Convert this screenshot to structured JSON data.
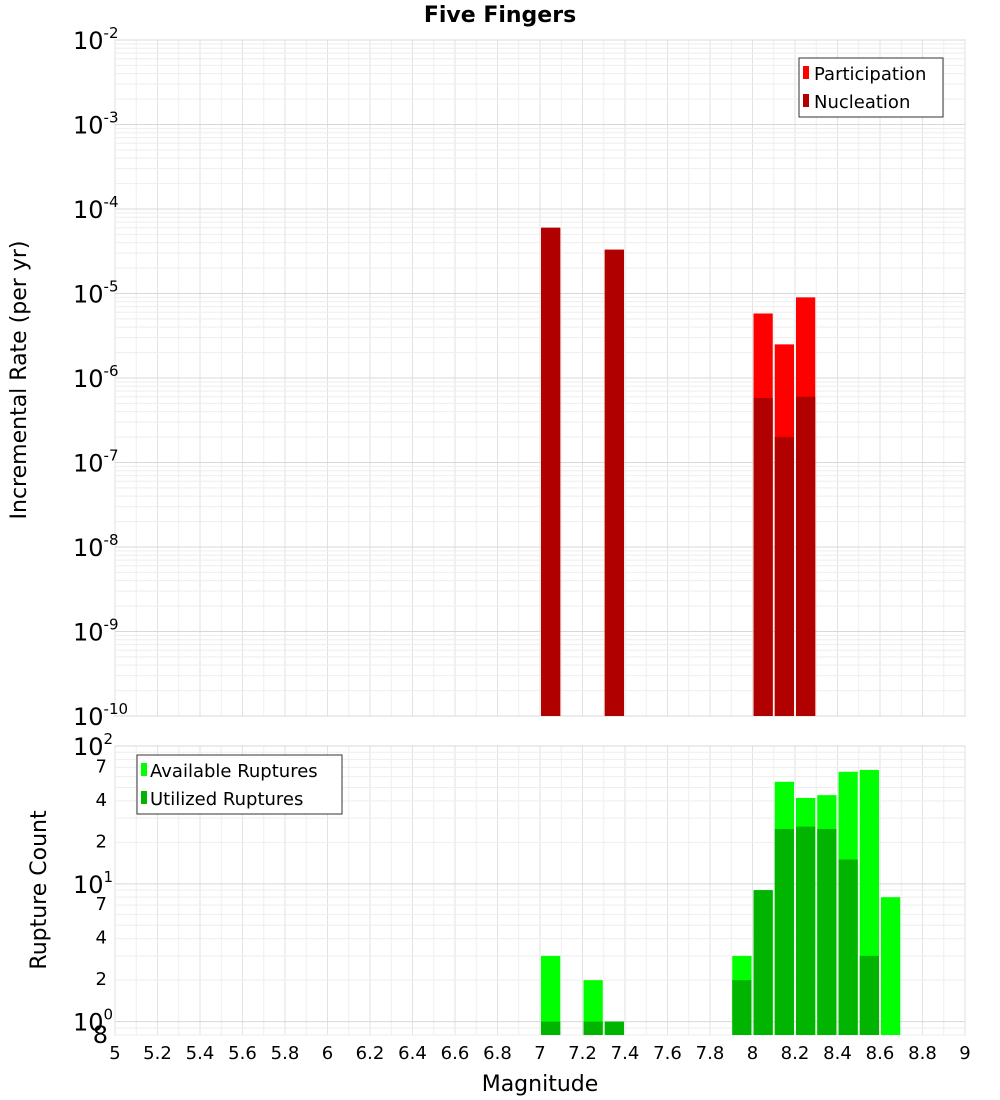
{
  "chart_data": [
    {
      "type": "bar",
      "title": "Five Fingers",
      "ylabel": "Incremental Rate (per yr)",
      "xlabel": "Magnitude",
      "xlim": [
        5,
        9
      ],
      "ylim": [
        1e-10,
        0.01
      ],
      "y_scale": "log",
      "bar_width": 0.1,
      "grid": true,
      "legend_position": "top-right",
      "y_tick_labels": [
        {
          "base": "10",
          "exp": "-10"
        },
        {
          "base": "10",
          "exp": "-9"
        },
        {
          "base": "10",
          "exp": "-8"
        },
        {
          "base": "10",
          "exp": "-7"
        },
        {
          "base": "10",
          "exp": "-6"
        },
        {
          "base": "10",
          "exp": "-5"
        },
        {
          "base": "10",
          "exp": "-4"
        },
        {
          "base": "10",
          "exp": "-3"
        },
        {
          "base": "10",
          "exp": "-2"
        }
      ],
      "series": [
        {
          "name": "Participation",
          "color": "#ff0000",
          "x": [
            7.05,
            7.35,
            8.05,
            8.15,
            8.25
          ],
          "values": [
            6e-05,
            3.3e-05,
            5.8e-06,
            2.5e-06,
            9e-06
          ]
        },
        {
          "name": "Nucleation",
          "color": "#b00000",
          "x": [
            7.05,
            7.35,
            8.05,
            8.15,
            8.25
          ],
          "values": [
            6e-05,
            3.3e-05,
            5.8e-07,
            2e-07,
            6e-07
          ]
        }
      ]
    },
    {
      "type": "bar",
      "ylabel": "Rupture Count",
      "xlabel": "Magnitude",
      "xlim": [
        5,
        9
      ],
      "ylim": [
        0.8,
        100
      ],
      "y_scale": "log",
      "bar_width": 0.1,
      "grid": true,
      "legend_position": "top-left",
      "x_ticks": [
        "5",
        "5.2",
        "5.4",
        "5.6",
        "5.8",
        "6",
        "6.2",
        "6.4",
        "6.6",
        "6.8",
        "7",
        "7.2",
        "7.4",
        "7.6",
        "7.8",
        "8",
        "8.2",
        "8.4",
        "8.6",
        "8.8",
        "9"
      ],
      "y_major_labels": [
        {
          "base": "10",
          "exp": "0"
        },
        {
          "base": "10",
          "exp": "1"
        },
        {
          "base": "10",
          "exp": "2"
        }
      ],
      "y_minor_labels": [
        "8",
        "2",
        "4",
        "7",
        "2",
        "4",
        "7"
      ],
      "series": [
        {
          "name": "Available Ruptures",
          "color": "#00ff00",
          "x": [
            7.05,
            7.25,
            7.35,
            7.95,
            8.05,
            8.15,
            8.25,
            8.35,
            8.45,
            8.55,
            8.65
          ],
          "values": [
            3,
            2,
            1,
            3,
            9,
            55,
            42,
            44,
            65,
            67,
            8
          ]
        },
        {
          "name": "Utilized Ruptures",
          "color": "#00b400",
          "x": [
            7.05,
            7.25,
            7.35,
            7.95,
            8.05,
            8.15,
            8.25,
            8.35,
            8.45,
            8.55,
            8.65
          ],
          "values": [
            1,
            1,
            1,
            2,
            9,
            25,
            26,
            25,
            15,
            3,
            0
          ]
        }
      ]
    }
  ]
}
